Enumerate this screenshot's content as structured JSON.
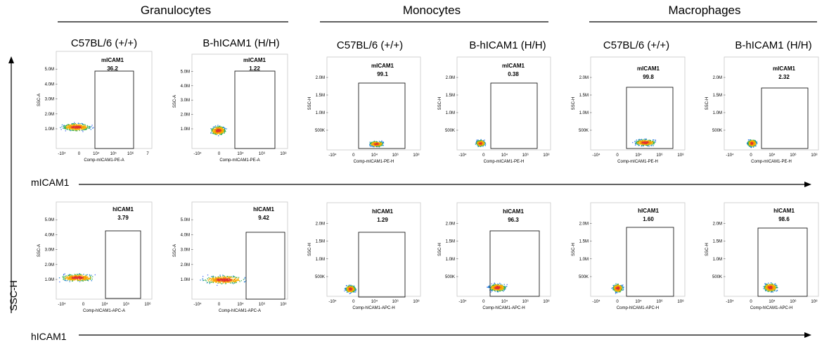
{
  "groups": [
    "Granulocytes",
    "Monocytes",
    "Macrophages"
  ],
  "columns": [
    "C57BL/6 (+/+)",
    "B-hICAM1 (H/H)",
    "C57BL/6 (+/+)",
    "B-hICAM1 (H/H)",
    "C57BL/6 (+/+)",
    "B-hICAM1 (H/H)"
  ],
  "row_labels": [
    "mICAM1",
    "hICAM1"
  ],
  "y_axis_label": "SSC-H",
  "chart_data": [
    {
      "type": "scatter",
      "group": "Granulocytes",
      "strain": "C57BL/6 (+/+)",
      "marker": "mICAM1",
      "gate_label": "mICAM1",
      "gate_value": "36.2",
      "xlabel": "Comp-mICAM1-PE-A",
      "ylabel": "SSC-A",
      "y_ticks": [
        "1.0M",
        "2.0M",
        "3.0M",
        "4.0M",
        "5.0M"
      ],
      "x_ticks": [
        "-10⁴",
        "0",
        "10⁴",
        "10⁵",
        "10⁶",
        "7"
      ]
    },
    {
      "type": "scatter",
      "group": "Granulocytes",
      "strain": "B-hICAM1 (H/H)",
      "marker": "mICAM1",
      "gate_label": "mICAM1",
      "gate_value": "1.22",
      "xlabel": "Comp-mICAM1-PE-A",
      "ylabel": "SSC-A",
      "y_ticks": [
        "1.0M",
        "2.0M",
        "3.0M",
        "4.0M",
        "5.0M"
      ],
      "x_ticks": [
        "-10⁴",
        "0",
        "10⁴",
        "10⁶",
        "10⁸"
      ]
    },
    {
      "type": "scatter",
      "group": "Monocytes",
      "strain": "C57BL/6 (+/+)",
      "marker": "mICAM1",
      "gate_label": "mICAM1",
      "gate_value": "99.1",
      "xlabel": "Comp-mICAM1-PE-H",
      "ylabel": "SSC-H",
      "y_ticks": [
        "500K",
        "1.0M",
        "1.5M",
        "2.0M"
      ],
      "x_ticks": [
        "-10⁴",
        "0",
        "10⁴",
        "10⁶",
        "10⁸"
      ]
    },
    {
      "type": "scatter",
      "group": "Monocytes",
      "strain": "B-hICAM1 (H/H)",
      "marker": "mICAM1",
      "gate_label": "mICAM1",
      "gate_value": "0.38",
      "xlabel": "Comp-mICAM1-PE-H",
      "ylabel": "SSC-H",
      "y_ticks": [
        "500K",
        "1.0M",
        "1.5M",
        "2.0M"
      ],
      "x_ticks": [
        "-10⁴",
        "0",
        "10⁴",
        "10⁶",
        "10⁸"
      ]
    },
    {
      "type": "scatter",
      "group": "Macrophages",
      "strain": "C57BL/6 (+/+)",
      "marker": "mICAM1",
      "gate_label": "mICAM1",
      "gate_value": "99.8",
      "xlabel": "Comp-mICAM1-PE-H",
      "ylabel": "SSC-H",
      "y_ticks": [
        "500K",
        "1.0M",
        "1.5M",
        "2.0M"
      ],
      "x_ticks": [
        "-10⁴",
        "0",
        "10⁴",
        "10⁶",
        "10⁸"
      ]
    },
    {
      "type": "scatter",
      "group": "Macrophages",
      "strain": "B-hICAM1 (H/H)",
      "marker": "mICAM1",
      "gate_label": "mICAM1",
      "gate_value": "2.32",
      "xlabel": "Comp-mICAM1-PE-H",
      "ylabel": "SSC-H",
      "y_ticks": [
        "500K",
        "1.0M",
        "1.5M",
        "2.0M"
      ],
      "x_ticks": [
        "-10⁴",
        "0",
        "10⁴",
        "10⁶",
        "10⁸"
      ]
    },
    {
      "type": "scatter",
      "group": "Granulocytes",
      "strain": "C57BL/6 (+/+)",
      "marker": "hICAM1",
      "gate_label": "hICAM1",
      "gate_value": "3.79",
      "xlabel": "Comp-hICAM1-APC-A",
      "ylabel": "SSC-A",
      "y_ticks": [
        "1.0M",
        "2.0M",
        "3.0M",
        "4.0M",
        "5.0M"
      ],
      "x_ticks": [
        "-10⁴",
        "0",
        "10⁴",
        "10⁵",
        "10⁶"
      ]
    },
    {
      "type": "scatter",
      "group": "Granulocytes",
      "strain": "B-hICAM1 (H/H)",
      "marker": "hICAM1",
      "gate_label": "hICAM1",
      "gate_value": "9.42",
      "xlabel": "Comp-hICAM1-APC-A",
      "ylabel": "SSC-A",
      "y_ticks": [
        "1.0M",
        "2.0M",
        "3.0M",
        "4.0M",
        "5.0M"
      ],
      "x_ticks": [
        "-10⁴",
        "0",
        "10⁴",
        "10⁶",
        "10⁸"
      ]
    },
    {
      "type": "scatter",
      "group": "Monocytes",
      "strain": "C57BL/6 (+/+)",
      "marker": "hICAM1",
      "gate_label": "hICAM1",
      "gate_value": "1.29",
      "xlabel": "Comp-hICAM1-APC-H",
      "ylabel": "SSC-H",
      "y_ticks": [
        "500K",
        "1.0M",
        "1.5M",
        "2.0M"
      ],
      "x_ticks": [
        "-10⁴",
        "0",
        "10⁴",
        "10⁶",
        "10⁸"
      ]
    },
    {
      "type": "scatter",
      "group": "Monocytes",
      "strain": "B-hICAM1 (H/H)",
      "marker": "hICAM1",
      "gate_label": "hICAM1",
      "gate_value": "96.3",
      "xlabel": "Comp-hICAM1-APC-H",
      "ylabel": "SSC-H",
      "y_ticks": [
        "500K",
        "1.0M",
        "1.5M",
        "2.0M"
      ],
      "x_ticks": [
        "-10⁴",
        "0",
        "10⁴",
        "10⁶",
        "10⁸"
      ]
    },
    {
      "type": "scatter",
      "group": "Macrophages",
      "strain": "C57BL/6 (+/+)",
      "marker": "hICAM1",
      "gate_label": "hICAM1",
      "gate_value": "1.60",
      "xlabel": "Comp-hICAM1-APC-H",
      "ylabel": "SSC-H",
      "y_ticks": [
        "500K",
        "1.0M",
        "1.5M",
        "2.0M"
      ],
      "x_ticks": [
        "-10⁴",
        "0",
        "10⁴",
        "10⁶",
        "10⁸"
      ]
    },
    {
      "type": "scatter",
      "group": "Macrophages",
      "strain": "B-hICAM1 (H/H)",
      "marker": "hICAM1",
      "gate_label": "hICAM1",
      "gate_value": "98.6",
      "xlabel": "Comp-hICAM1-APC-H",
      "ylabel": "SSC-H",
      "y_ticks": [
        "500K",
        "1.0M",
        "1.5M",
        "2.0M"
      ],
      "x_ticks": [
        "-10⁴",
        "0",
        "10⁴",
        "10⁶",
        "10⁸"
      ]
    }
  ]
}
